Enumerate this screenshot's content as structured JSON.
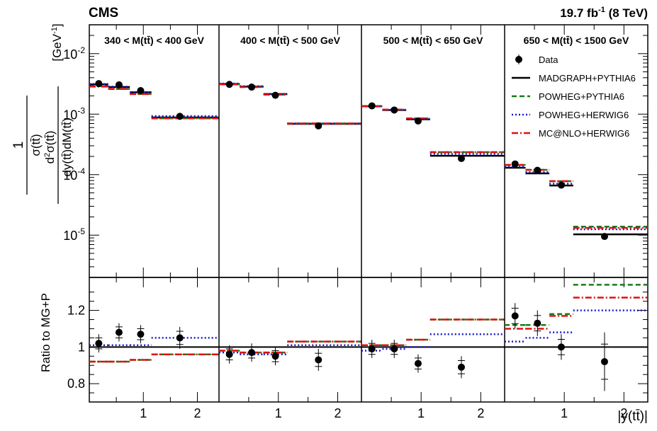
{
  "header": {
    "experiment": "CMS",
    "lumi": "19.7 fb",
    "lumi_sup": "-1",
    "energy": " (8 TeV)"
  },
  "legend": [
    {
      "label": "Data",
      "style": "data"
    },
    {
      "label": "MADGRAPH+PYTHIA6",
      "style": "solid",
      "color": "#000000"
    },
    {
      "label": "POWHEG+PYTHIA6",
      "style": "dashed",
      "color": "#1a7a1a"
    },
    {
      "label": "POWHEG+HERWIG6",
      "style": "dotted",
      "color": "#1a1acc"
    },
    {
      "label": "MC@NLO+HERWIG6",
      "style": "dashdot",
      "color": "#e01010"
    }
  ],
  "axes": {
    "x_label": "|y(tt̄)|",
    "y_label_top": "1 / σ(tt̄) · d²σ(tt̄) / dy(tt̄)dM(tt̄) [GeV⁻¹]",
    "y_label_bottom": "Ratio to MG+P",
    "x_ticks": [
      "1",
      "2"
    ],
    "y_ticks_top": [
      "10-5",
      "10-4",
      "10-3",
      "10-2"
    ],
    "y_ticks_bottom": [
      "0.8",
      "1",
      "1.2"
    ]
  },
  "chart_data": {
    "type": "step",
    "x_label": "|y(tt̄)|",
    "xlim": [
      0,
      2.4
    ],
    "ylim_top": [
      2e-06,
      0.03
    ],
    "ylim_ratio": [
      0.7,
      1.38
    ],
    "y_scale_top": "log",
    "legend_position": "top-right",
    "bin_edges": [
      0,
      0.35,
      0.75,
      1.15,
      2.4
    ],
    "panels": [
      {
        "label": "340 < M(tt̄) < 400 GeV",
        "data": [
          0.0032,
          0.00305,
          0.00245,
          0.00092
        ],
        "models": {
          "MADGRAPH+PYTHIA6": [
            0.0031,
            0.0028,
            0.0023,
            0.00088
          ],
          "POWHEG+PYTHIA6": [
            0.0029,
            0.0026,
            0.00215,
            0.00085
          ],
          "POWHEG+HERWIG6": [
            0.00315,
            0.00285,
            0.0023,
            0.00093
          ],
          "MC@NLO+HERWIG6": [
            0.00285,
            0.0026,
            0.00215,
            0.00085
          ]
        },
        "ratio_data": [
          1.02,
          1.08,
          1.07,
          1.05
        ],
        "ratio_models": {
          "POWHEG+PYTHIA6": [
            0.92,
            0.92,
            0.93,
            0.96
          ],
          "POWHEG+HERWIG6": [
            1.01,
            1.01,
            1.01,
            1.05
          ],
          "MC@NLO+HERWIG6": [
            0.92,
            0.92,
            0.93,
            0.96
          ]
        }
      },
      {
        "label": "400 < M(tt̄) < 500 GeV",
        "data": [
          0.0031,
          0.0028,
          0.00205,
          0.00064
        ],
        "models": {
          "MADGRAPH+PYTHIA6": [
            0.00315,
            0.00285,
            0.00215,
            0.00069
          ],
          "POWHEG+PYTHIA6": [
            0.0031,
            0.0028,
            0.0021,
            0.0007
          ],
          "POWHEG+HERWIG6": [
            0.0032,
            0.0029,
            0.00215,
            0.0007
          ],
          "MC@NLO+HERWIG6": [
            0.0031,
            0.0028,
            0.0021,
            0.0007
          ]
        },
        "ratio_data": [
          0.96,
          0.97,
          0.95,
          0.93
        ],
        "ratio_models": {
          "POWHEG+PYTHIA6": [
            0.98,
            0.97,
            0.97,
            1.03
          ],
          "POWHEG+HERWIG6": [
            0.97,
            0.96,
            0.96,
            1.01
          ],
          "MC@NLO+HERWIG6": [
            0.98,
            0.97,
            0.97,
            1.03
          ]
        }
      },
      {
        "label": "500 < M(tt̄) < 650 GeV",
        "data": [
          0.00137,
          0.00117,
          0.00077,
          0.000185
        ],
        "models": {
          "MADGRAPH+PYTHIA6": [
            0.00135,
            0.00117,
            0.00082,
            0.000205
          ],
          "POWHEG+PYTHIA6": [
            0.00136,
            0.00119,
            0.00085,
            0.000235
          ],
          "POWHEG+HERWIG6": [
            0.00134,
            0.00117,
            0.00083,
            0.00022
          ],
          "MC@NLO+HERWIG6": [
            0.00136,
            0.00119,
            0.00085,
            0.000235
          ]
        },
        "ratio_data": [
          0.99,
          0.99,
          0.91,
          0.89
        ],
        "ratio_models": {
          "POWHEG+PYTHIA6": [
            1.01,
            1.01,
            1.04,
            1.15
          ],
          "POWHEG+HERWIG6": [
            0.98,
            0.99,
            1.0,
            1.07
          ],
          "MC@NLO+HERWIG6": [
            1.01,
            1.01,
            1.04,
            1.15
          ]
        }
      },
      {
        "label": "650 < M(tt̄) < 1500 GeV",
        "data": [
          0.00015,
          0.000118,
          6.7e-05,
          9.5e-06
        ],
        "models": {
          "MADGRAPH+PYTHIA6": [
            0.00013,
            0.000105,
            6.6e-05,
            1.03e-05
          ],
          "POWHEG+PYTHIA6": [
            0.000145,
            0.00012,
            7.8e-05,
            1.38e-05
          ],
          "POWHEG+HERWIG6": [
            0.000135,
            0.00011,
            7.1e-05,
            1.25e-05
          ],
          "MC@NLO+HERWIG6": [
            0.000145,
            0.00012,
            7.8e-05,
            1.32e-05
          ]
        },
        "ratio_data": [
          1.17,
          1.13,
          1.0,
          0.92
        ],
        "ratio_models": {
          "POWHEG+PYTHIA6": [
            1.12,
            1.12,
            1.18,
            1.34
          ],
          "POWHEG+HERWIG6": [
            1.03,
            1.05,
            1.08,
            1.2
          ],
          "MC@NLO+HERWIG6": [
            1.1,
            1.1,
            1.17,
            1.27
          ]
        }
      }
    ]
  }
}
